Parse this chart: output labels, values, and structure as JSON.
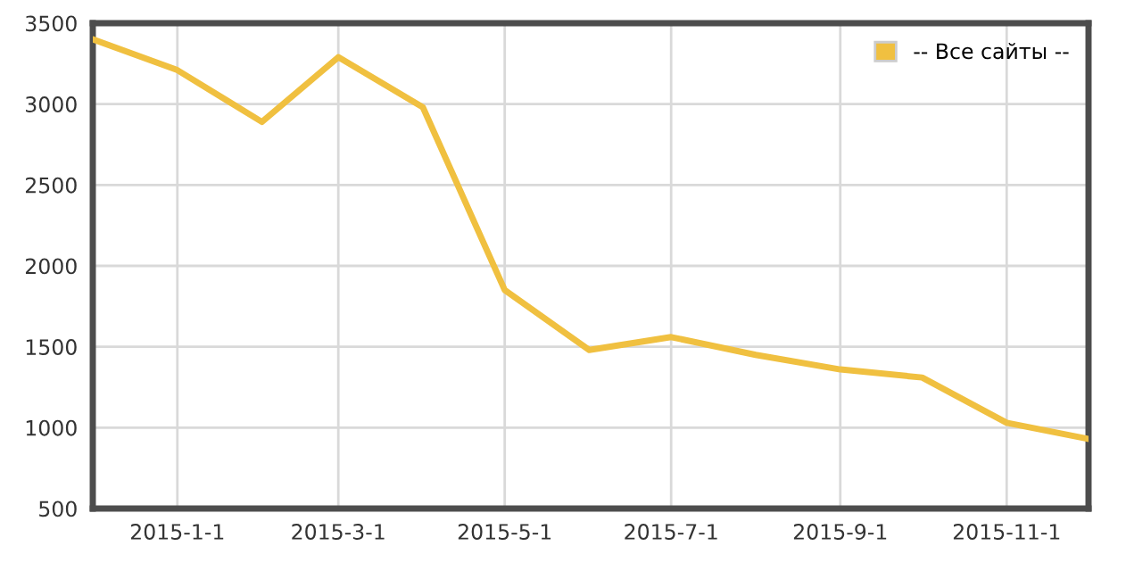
{
  "chart_data": {
    "type": "line",
    "x": [
      "2014-12-01",
      "2015-01-01",
      "2015-02-01",
      "2015-03-01",
      "2015-04-01",
      "2015-05-01",
      "2015-06-01",
      "2015-07-01",
      "2015-08-01",
      "2015-09-01",
      "2015-10-01",
      "2015-11-01",
      "2015-12-01"
    ],
    "series": [
      {
        "name": "-- Все сайты --",
        "color": "#f0c040",
        "values": [
          3400,
          3210,
          2890,
          3290,
          2980,
          1850,
          1480,
          1560,
          1450,
          1360,
          1310,
          1030,
          930
        ]
      }
    ],
    "xlim": [
      "2014-12-01",
      "2015-12-01"
    ],
    "xticks": [
      {
        "value": "2015-01-01",
        "label": "2015-1-1"
      },
      {
        "value": "2015-03-01",
        "label": "2015-3-1"
      },
      {
        "value": "2015-05-01",
        "label": "2015-5-1"
      },
      {
        "value": "2015-07-01",
        "label": "2015-7-1"
      },
      {
        "value": "2015-09-01",
        "label": "2015-9-1"
      },
      {
        "value": "2015-11-01",
        "label": "2015-11-1"
      }
    ],
    "ylim": [
      500,
      3500
    ],
    "yticks": [
      500,
      1000,
      1500,
      2000,
      2500,
      3000,
      3500
    ],
    "grid": true,
    "legend": "top right",
    "marker": "none",
    "line_style": "solid"
  }
}
